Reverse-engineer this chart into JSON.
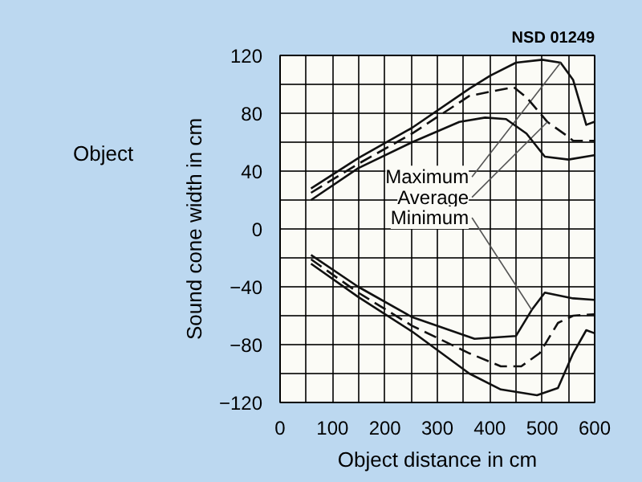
{
  "chart_data": {
    "type": "line",
    "xlabel": "Object distance in cm",
    "ylabel": "Sound cone width in cm",
    "annotations": [
      "NSD 01249",
      "Object"
    ],
    "xlim": [
      0,
      600
    ],
    "ylim": [
      -120,
      120
    ],
    "xticks": [
      0,
      100,
      200,
      300,
      400,
      500,
      600
    ],
    "yticks": [
      -120,
      -80,
      -40,
      0,
      40,
      80,
      120
    ],
    "grid": true,
    "series": [
      {
        "name": "Maximum",
        "color": "#111111",
        "line_style": "solid",
        "x": [
          59,
          149,
          252,
          361,
          401,
          450,
          500,
          535,
          559,
          584,
          599
        ],
        "values": [
          28,
          49,
          70,
          97,
          106,
          115,
          117,
          115,
          103,
          72,
          74
        ]
      },
      {
        "name": "Average",
        "color": "#111111",
        "line_style": "dashed",
        "x": [
          59,
          149,
          252,
          361,
          401,
          446,
          470,
          510,
          545,
          559,
          599
        ],
        "values": [
          25,
          45,
          66,
          92,
          95,
          98,
          91,
          74,
          65,
          61,
          61
        ]
      },
      {
        "color": "#111111",
        "line_style": "solid",
        "x": [
          59,
          149,
          252,
          342,
          391,
          431,
          470,
          505,
          550,
          599
        ],
        "values": [
          20,
          42,
          60,
          74,
          77,
          76,
          66,
          50,
          48,
          51
        ]
      },
      {
        "name": "Minimum",
        "color": "#111111",
        "line_style": "solid",
        "x": [
          59,
          149,
          252,
          371,
          450,
          480,
          505,
          559,
          599
        ],
        "values": [
          -18,
          -40,
          -61,
          -76,
          -74,
          -56,
          -44,
          -48,
          -49
        ]
      },
      {
        "color": "#111111",
        "line_style": "dashed",
        "x": [
          59,
          149,
          252,
          361,
          421,
          460,
          495,
          530,
          559,
          599
        ],
        "values": [
          -21,
          -44,
          -67,
          -86,
          -95,
          -95,
          -86,
          -65,
          -60,
          -59
        ]
      },
      {
        "color": "#111111",
        "line_style": "solid",
        "x": [
          59,
          149,
          252,
          361,
          421,
          490,
          530,
          559,
          584,
          599
        ],
        "values": [
          -24,
          -47,
          -71,
          -100,
          -111,
          -115,
          -110,
          -86,
          -70,
          -72
        ]
      }
    ]
  }
}
